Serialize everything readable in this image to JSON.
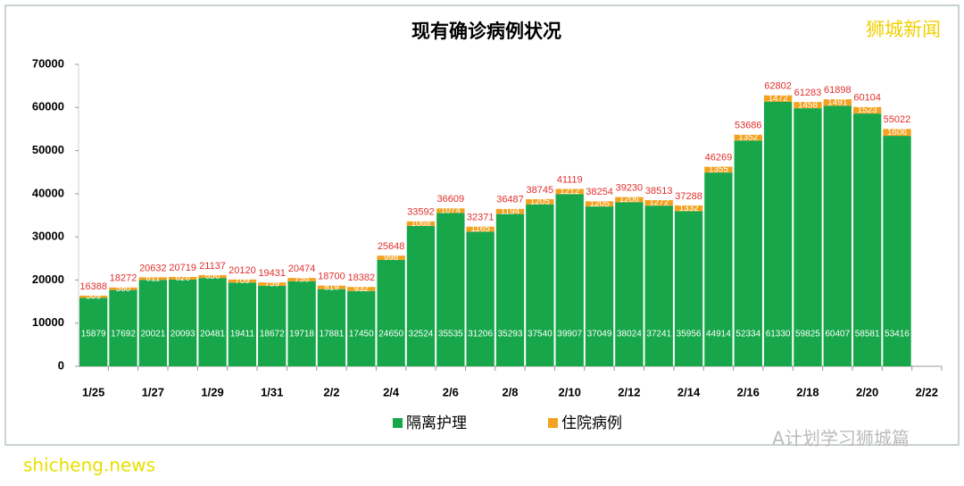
{
  "chart_data": {
    "type": "stacked_bar",
    "title": "现有确诊病例状况",
    "categories": [
      "1/25",
      null,
      "1/27",
      null,
      "1/29",
      null,
      "1/31",
      null,
      "2/2",
      null,
      "2/4",
      null,
      "2/6",
      null,
      "2/8",
      null,
      "2/10",
      null,
      "2/12",
      null,
      "2/14",
      null,
      "2/16",
      null,
      "2/18",
      null,
      "2/20",
      null,
      "2/22"
    ],
    "series": [
      {
        "name": "隔离护理",
        "color": "#17a74a",
        "values": [
          15879,
          17692,
          20021,
          20093,
          20481,
          19411,
          18672,
          19718,
          17881,
          17450,
          24650,
          32524,
          35535,
          31206,
          35293,
          37540,
          39907,
          37049,
          38024,
          37241,
          35956,
          44914,
          52334,
          61330,
          59825,
          60407,
          58581,
          53416,
          null
        ]
      },
      {
        "name": "住院病例",
        "color": "#f3a21f",
        "values": [
          509,
          580,
          611,
          626,
          656,
          709,
          759,
          756,
          819,
          932,
          998,
          1068,
          1074,
          1165,
          1194,
          1205,
          1212,
          1205,
          1206,
          1272,
          1332,
          1355,
          1352,
          1472,
          1458,
          1491,
          1523,
          1606,
          null
        ]
      }
    ],
    "totals": [
      16388,
      18272,
      20632,
      20719,
      21137,
      20120,
      19431,
      20474,
      18700,
      18382,
      25648,
      33592,
      36609,
      32371,
      36487,
      38745,
      41119,
      38254,
      39230,
      38513,
      37288,
      46269,
      53686,
      62802,
      61283,
      61898,
      60104,
      55022,
      null
    ],
    "total_color": "#e0302c",
    "ylim": [
      0,
      70000
    ],
    "yticks": [
      0,
      10000,
      20000,
      30000,
      40000,
      50000,
      60000,
      70000
    ],
    "grid": false
  },
  "watermarks": {
    "top": "狮城新闻",
    "bottom_right": "A计划学习狮城篇",
    "site": "shicheng.news"
  }
}
